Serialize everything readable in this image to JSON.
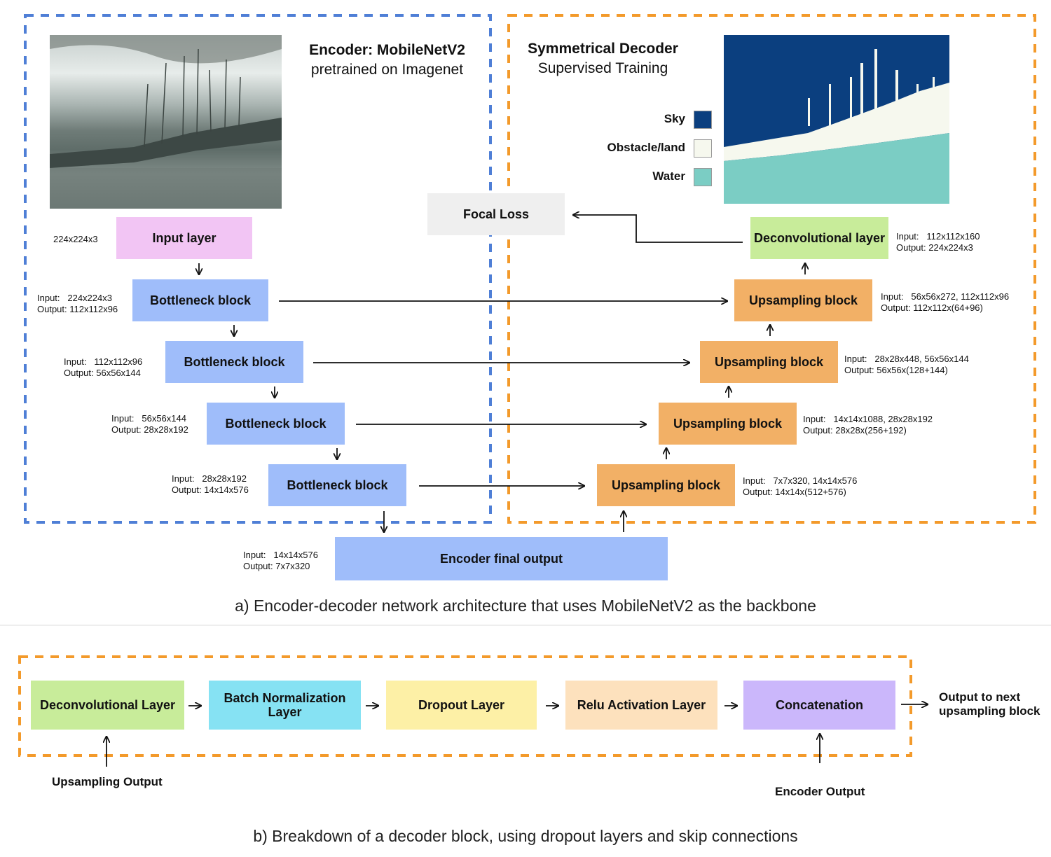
{
  "encoder": {
    "title": "Encoder: MobileNetV2",
    "subtitle": "pretrained on Imagenet",
    "input_layer": {
      "label": "Input layer",
      "dim": "224x224x3"
    },
    "bottlenecks": [
      {
        "label": "Bottleneck block",
        "io": "Input:   224x224x3\nOutput: 112x112x96"
      },
      {
        "label": "Bottleneck block",
        "io": "Input:   112x112x96\nOutput: 56x56x144"
      },
      {
        "label": "Bottleneck block",
        "io": "Input:   56x56x144\nOutput: 28x28x192"
      },
      {
        "label": "Bottleneck block",
        "io": "Input:   28x28x192\nOutput: 14x14x576"
      }
    ],
    "final_output": {
      "label": "Encoder final output",
      "io": "Input:   14x14x576\nOutput: 7x7x320"
    }
  },
  "decoder": {
    "title": "Symmetrical Decoder",
    "subtitle": "Supervised Training",
    "deconv_layer": {
      "label": "Deconvolutional layer",
      "io": "Input:   112x112x160\nOutput: 224x224x3"
    },
    "upsampling": [
      {
        "label": "Upsampling block",
        "io": "Input:   56x56x272, 112x112x96\nOutput: 112x112x(64+96)"
      },
      {
        "label": "Upsampling block",
        "io": "Input:   28x28x448, 56x56x144\nOutput: 56x56x(128+144)"
      },
      {
        "label": "Upsampling block",
        "io": "Input:   14x14x1088, 28x28x192\nOutput: 28x28x(256+192)"
      },
      {
        "label": "Upsampling block",
        "io": "Input:   7x7x320, 14x14x576\nOutput: 14x14x(512+576)"
      }
    ],
    "legend": [
      {
        "label": "Sky",
        "color": "#0b3f7f"
      },
      {
        "label": "Obstacle/land",
        "color": "#f6f8ee"
      },
      {
        "label": "Water",
        "color": "#7bcdc4"
      }
    ]
  },
  "focal_loss": "Focal Loss",
  "caption_a": "a) Encoder-decoder network architecture that uses MobileNetV2 as the backbone",
  "block": {
    "steps": [
      {
        "label": "Deconvolutional Layer",
        "color": "#c8ec9a"
      },
      {
        "label": "Batch Normalization Layer",
        "color": "#86e2f3"
      },
      {
        "label": "Dropout Layer",
        "color": "#fdf0a6"
      },
      {
        "label": "Relu Activation Layer",
        "color": "#fde1bd"
      },
      {
        "label": "Concatenation",
        "color": "#cbb7fb"
      }
    ],
    "output_next": "Output to next upsampling block",
    "upsampling_output": "Upsampling Output",
    "encoder_output": "Encoder Output"
  },
  "caption_b": "b) Breakdown of a decoder block, using dropout layers and skip connections",
  "colors": {
    "encoder_border": "#4f7fd6",
    "decoder_border": "#f39a2b"
  }
}
